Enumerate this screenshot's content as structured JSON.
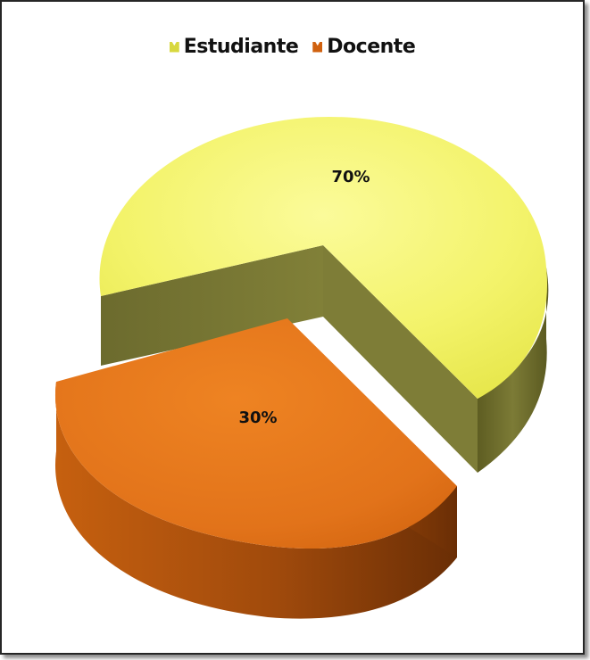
{
  "chart_data": {
    "type": "pie",
    "categories": [
      "Estudiante",
      "Docente"
    ],
    "values": [
      70,
      30
    ],
    "labels": [
      "70%",
      "30%"
    ],
    "colors": [
      "#F3F36A",
      "#E2731A"
    ],
    "side_colors": [
      "#6F6E30",
      "#A94E0E"
    ],
    "legend_position": "top",
    "exploded": true
  }
}
